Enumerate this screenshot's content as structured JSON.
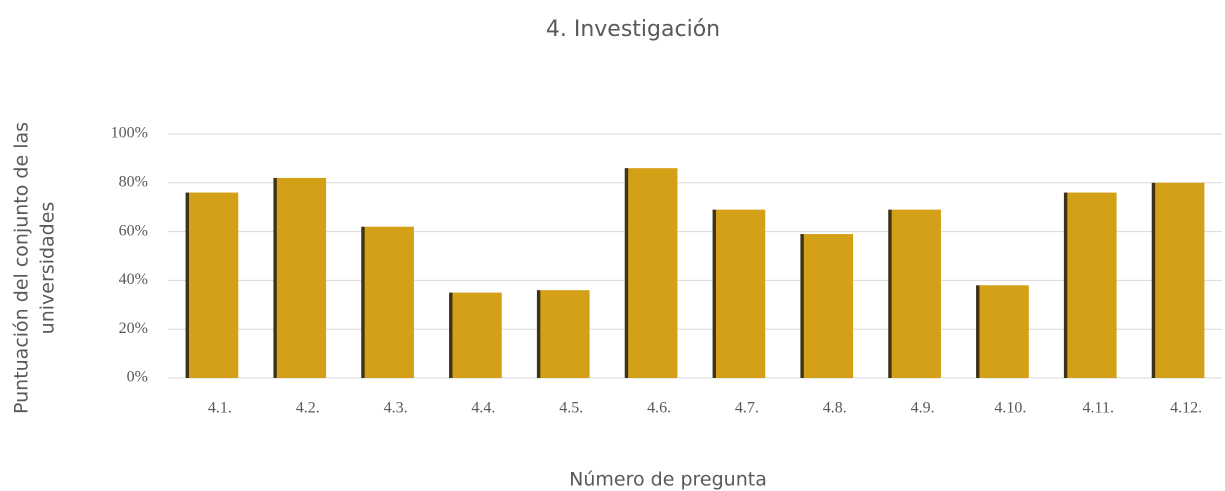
{
  "chart_data": {
    "type": "bar",
    "title": "4. Investigación",
    "xlabel": "Número de pregunta",
    "ylabel": [
      "Puntuación del conjunto de las",
      "universidades"
    ],
    "categories": [
      "4.1.",
      "4.2.",
      "4.3.",
      "4.4.",
      "4.5.",
      "4.6.",
      "4.7.",
      "4.8.",
      "4.9.",
      "4.10.",
      "4.11.",
      "4.12."
    ],
    "values": [
      76,
      82,
      62,
      35,
      36,
      86,
      69,
      59,
      69,
      38,
      76,
      80
    ],
    "color": "#d4a017",
    "ylim": [
      0,
      100
    ],
    "yticks": [
      {
        "value": 0,
        "label": "0%"
      },
      {
        "value": 20,
        "label": "20%"
      },
      {
        "value": 40,
        "label": "40%"
      },
      {
        "value": 60,
        "label": "60%"
      },
      {
        "value": 80,
        "label": "80%"
      },
      {
        "value": 100,
        "label": "100%"
      }
    ],
    "grid": true
  }
}
